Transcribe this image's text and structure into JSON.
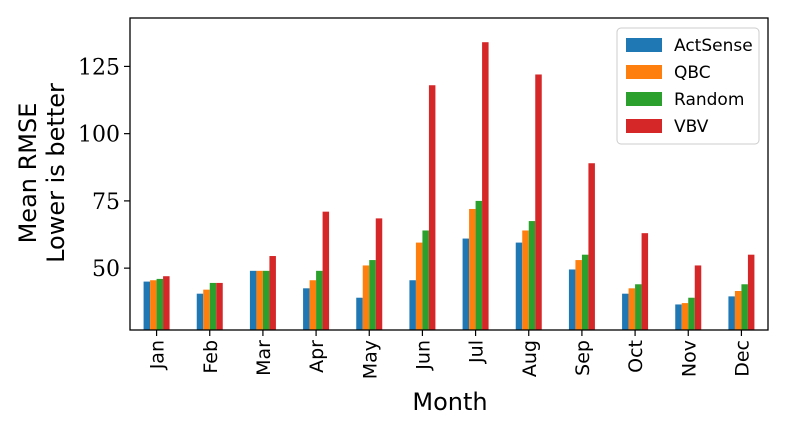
{
  "chart_data": {
    "type": "bar",
    "title": "",
    "xlabel": "Month",
    "ylabel_lines": [
      "Mean RMSE",
      "Lower is better"
    ],
    "categories": [
      "Jan",
      "Feb",
      "Mar",
      "Apr",
      "May",
      "Jun",
      "Jul",
      "Aug",
      "Sep",
      "Oct",
      "Nov",
      "Dec"
    ],
    "ylim": [
      27,
      143
    ],
    "yticks": [
      50,
      75,
      100,
      125
    ],
    "grid": false,
    "legend_position": "top-right",
    "series": [
      {
        "name": "ActSense",
        "color": "#1f77b4",
        "values": [
          45,
          40.5,
          49,
          42.5,
          39,
          45.5,
          61,
          59.5,
          49.5,
          40.5,
          36.5,
          39.5
        ]
      },
      {
        "name": "QBC",
        "color": "#ff7f0e",
        "values": [
          45.5,
          42,
          49,
          45.5,
          51,
          59.5,
          72,
          64,
          53,
          42.5,
          37,
          41.5
        ]
      },
      {
        "name": "Random",
        "color": "#2ca02c",
        "values": [
          46,
          44.5,
          49,
          49,
          53,
          64,
          75,
          67.5,
          55,
          44,
          39,
          44
        ]
      },
      {
        "name": "VBV",
        "color": "#d62728",
        "values": [
          47,
          44.5,
          54.5,
          71,
          68.5,
          118,
          134,
          122,
          89,
          63,
          51,
          55
        ]
      }
    ]
  }
}
